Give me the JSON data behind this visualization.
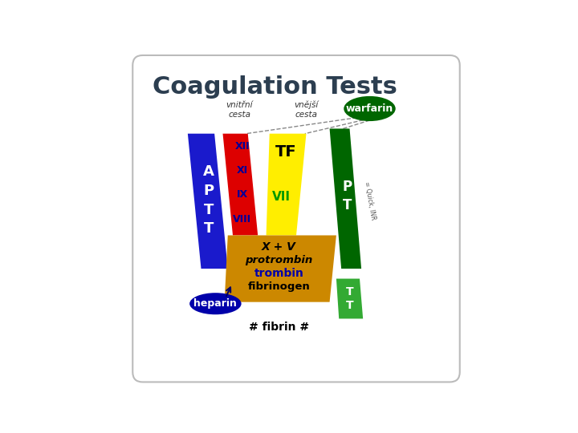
{
  "title": "Coagulation Tests",
  "title_fontsize": 22,
  "title_color": "#2c3e50",
  "background_color": "#ffffff",
  "border_color": "#bbbbbb",
  "aptt_color": "#1a1acc",
  "aptt_label": "A\nP\nT\nT",
  "aptt_label_color": "#ffffff",
  "red_color": "#dd0000",
  "red_labels": [
    "XII",
    "XI",
    "IX",
    "VIII"
  ],
  "red_label_color": "#000099",
  "yellow_color": "#ffee00",
  "yellow_tf_label": "TF",
  "yellow_tf_color": "#000000",
  "yellow_vii_label": "VII",
  "yellow_vii_color": "#009900",
  "orange_color": "#cc8800",
  "orange_labels": [
    "X + V",
    "protrombin",
    "trombin",
    "fibrinogen"
  ],
  "orange_label_colors": [
    "#000000",
    "#000000",
    "#0000aa",
    "#000000"
  ],
  "green_bar_color": "#006600",
  "green_bar_label": "P\nT",
  "green_bar_label_color": "#ffffff",
  "green_tt_color": "#33aa33",
  "green_tt_label": "T\nT",
  "green_tt_label_color": "#ffffff",
  "warfarin_ellipse_color": "#006600",
  "warfarin_label": "warfarin",
  "warfarin_label_color": "#ffffff",
  "heparin_ellipse_color": "#0000aa",
  "heparin_label": "heparin",
  "heparin_label_color": "#ffffff",
  "vnitrni_label": "vnitřní\ncesta",
  "vnejsi_label": "vnější\ncesta",
  "fibrin_label": "# fibrin #",
  "quick_label": "= Quick, INR",
  "fig_bg": "#ffffff"
}
